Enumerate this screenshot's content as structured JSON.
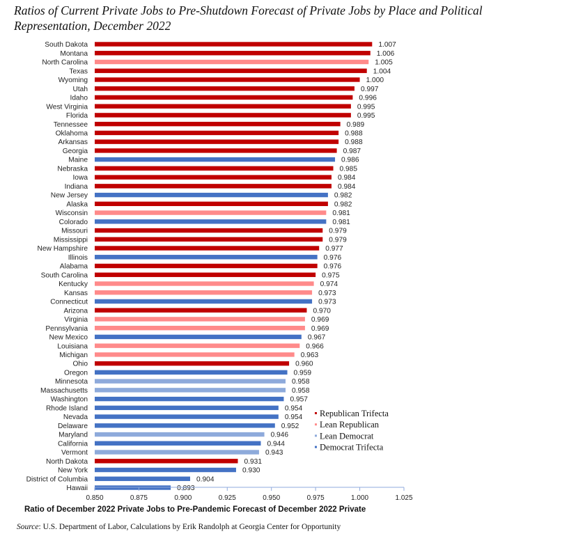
{
  "title": "Ratios of Current Private Jobs to Pre-Shutdown Forecast of Private Jobs by Place and Political Representation, December 2022",
  "source": {
    "label": "Source",
    "text": ": U.S. Department of Labor, Calculations by Erik Randolph at Georgia Center for Opportunity"
  },
  "colors": {
    "Republican Trifecta": "#c00000",
    "Lean Republican": "#ff8a8a",
    "Lean Democrat": "#8eaadb",
    "Democrat Trifecta": "#4472c4"
  },
  "chart_data": {
    "type": "bar",
    "orientation": "horizontal",
    "title": "Ratios of Current Private Jobs to Pre-Shutdown Forecast of Private Jobs by Place and Political Representation, December 2022",
    "xlabel": "Ratio of December 2022 Private Jobs to Pre-Pandemic Forecast of December 2022 Private",
    "ylabel": "",
    "xlim": [
      0.85,
      1.025
    ],
    "ticks": [
      "0.850",
      "0.875",
      "0.900",
      "0.925",
      "0.950",
      "0.975",
      "1.000",
      "1.025"
    ],
    "tick_values": [
      0.85,
      0.875,
      0.9,
      0.925,
      0.95,
      0.975,
      1.0,
      1.025
    ],
    "grid": false,
    "legend_position": "bottom-right",
    "legend": [
      "Republican Trifecta",
      "Lean Republican",
      "Lean Democrat",
      "Democrat Trifecta"
    ],
    "bars": [
      {
        "name": "South Dakota",
        "value": 1.007,
        "label": "1.007",
        "group": "Republican Trifecta"
      },
      {
        "name": "Montana",
        "value": 1.006,
        "label": "1.006",
        "group": "Republican Trifecta"
      },
      {
        "name": "North Carolina",
        "value": 1.005,
        "label": "1.005",
        "group": "Lean Republican"
      },
      {
        "name": "Texas",
        "value": 1.004,
        "label": "1.004",
        "group": "Republican Trifecta"
      },
      {
        "name": "Wyoming",
        "value": 1.0,
        "label": "1.000",
        "group": "Republican Trifecta"
      },
      {
        "name": "Utah",
        "value": 0.997,
        "label": "0.997",
        "group": "Republican Trifecta"
      },
      {
        "name": "Idaho",
        "value": 0.996,
        "label": "0.996",
        "group": "Republican Trifecta"
      },
      {
        "name": "West Virginia",
        "value": 0.995,
        "label": "0.995",
        "group": "Republican Trifecta"
      },
      {
        "name": "Florida",
        "value": 0.995,
        "label": "0.995",
        "group": "Republican Trifecta"
      },
      {
        "name": "Tennessee",
        "value": 0.989,
        "label": "0.989",
        "group": "Republican Trifecta"
      },
      {
        "name": "Oklahoma",
        "value": 0.988,
        "label": "0.988",
        "group": "Republican Trifecta"
      },
      {
        "name": "Arkansas",
        "value": 0.988,
        "label": "0.988",
        "group": "Republican Trifecta"
      },
      {
        "name": "Georgia",
        "value": 0.987,
        "label": "0.987",
        "group": "Republican Trifecta"
      },
      {
        "name": "Maine",
        "value": 0.986,
        "label": "0.986",
        "group": "Democrat Trifecta"
      },
      {
        "name": "Nebraska",
        "value": 0.985,
        "label": "0.985",
        "group": "Republican Trifecta"
      },
      {
        "name": "Iowa",
        "value": 0.984,
        "label": "0.984",
        "group": "Republican Trifecta"
      },
      {
        "name": "Indiana",
        "value": 0.984,
        "label": "0.984",
        "group": "Republican Trifecta"
      },
      {
        "name": "New Jersey",
        "value": 0.982,
        "label": "0.982",
        "group": "Democrat Trifecta"
      },
      {
        "name": "Alaska",
        "value": 0.982,
        "label": "0.982",
        "group": "Republican Trifecta"
      },
      {
        "name": "Wisconsin",
        "value": 0.981,
        "label": "0.981",
        "group": "Lean Republican"
      },
      {
        "name": "Colorado",
        "value": 0.981,
        "label": "0.981",
        "group": "Democrat Trifecta"
      },
      {
        "name": "Missouri",
        "value": 0.979,
        "label": "0.979",
        "group": "Republican Trifecta"
      },
      {
        "name": "Mississippi",
        "value": 0.979,
        "label": "0.979",
        "group": "Republican Trifecta"
      },
      {
        "name": "New Hampshire",
        "value": 0.977,
        "label": "0.977",
        "group": "Republican Trifecta"
      },
      {
        "name": "Illinois",
        "value": 0.976,
        "label": "0.976",
        "group": "Democrat Trifecta"
      },
      {
        "name": "Alabama",
        "value": 0.976,
        "label": "0.976",
        "group": "Republican Trifecta"
      },
      {
        "name": "South Carolina",
        "value": 0.975,
        "label": "0.975",
        "group": "Republican Trifecta"
      },
      {
        "name": "Kentucky",
        "value": 0.974,
        "label": "0.974",
        "group": "Lean Republican"
      },
      {
        "name": "Kansas",
        "value": 0.973,
        "label": "0.973",
        "group": "Lean Republican"
      },
      {
        "name": "Connecticut",
        "value": 0.973,
        "label": "0.973",
        "group": "Democrat Trifecta"
      },
      {
        "name": "Arizona",
        "value": 0.97,
        "label": "0.970",
        "group": "Republican Trifecta"
      },
      {
        "name": "Virginia",
        "value": 0.969,
        "label": "0.969",
        "group": "Lean Republican"
      },
      {
        "name": "Pennsylvania",
        "value": 0.969,
        "label": "0.969",
        "group": "Lean Republican"
      },
      {
        "name": "New Mexico",
        "value": 0.967,
        "label": "0.967",
        "group": "Democrat Trifecta"
      },
      {
        "name": "Louisiana",
        "value": 0.966,
        "label": "0.966",
        "group": "Lean Republican"
      },
      {
        "name": "Michigan",
        "value": 0.963,
        "label": "0.963",
        "group": "Lean Republican"
      },
      {
        "name": "Ohio",
        "value": 0.96,
        "label": "0.960",
        "group": "Republican Trifecta"
      },
      {
        "name": "Oregon",
        "value": 0.959,
        "label": "0.959",
        "group": "Democrat Trifecta"
      },
      {
        "name": "Minnesota",
        "value": 0.958,
        "label": "0.958",
        "group": "Lean Democrat"
      },
      {
        "name": "Massachusetts",
        "value": 0.958,
        "label": "0.958",
        "group": "Lean Democrat"
      },
      {
        "name": "Washington",
        "value": 0.957,
        "label": "0.957",
        "group": "Democrat Trifecta"
      },
      {
        "name": "Rhode Island",
        "value": 0.954,
        "label": "0.954",
        "group": "Democrat Trifecta"
      },
      {
        "name": "Nevada",
        "value": 0.954,
        "label": "0.954",
        "group": "Democrat Trifecta"
      },
      {
        "name": "Delaware",
        "value": 0.952,
        "label": "0.952",
        "group": "Democrat Trifecta"
      },
      {
        "name": "Maryland",
        "value": 0.946,
        "label": "0.946",
        "group": "Lean Democrat"
      },
      {
        "name": "California",
        "value": 0.944,
        "label": "0.944",
        "group": "Democrat Trifecta"
      },
      {
        "name": "Vermont",
        "value": 0.943,
        "label": "0.943",
        "group": "Lean Democrat"
      },
      {
        "name": "North Dakota",
        "value": 0.931,
        "label": "0.931",
        "group": "Republican Trifecta"
      },
      {
        "name": "New York",
        "value": 0.93,
        "label": "0.930",
        "group": "Democrat Trifecta"
      },
      {
        "name": "District of Columbia",
        "value": 0.904,
        "label": "0.904",
        "group": "Democrat Trifecta"
      },
      {
        "name": "Hawaii",
        "value": 0.893,
        "label": "0.893",
        "group": "Democrat Trifecta"
      }
    ]
  }
}
